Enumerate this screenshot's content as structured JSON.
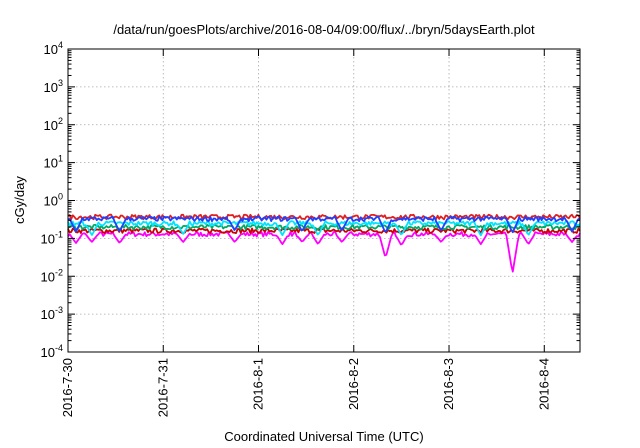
{
  "chart_data": {
    "type": "line",
    "title": "/data/run/goesPlots/archive/2016-08-04/09:00/flux/../bryn/5daysEarth.plot",
    "xlabel": "Coordinated Universal Time (UTC)",
    "ylabel": "cGy/day",
    "yscale": "log",
    "ylim": [
      0.0001,
      10000
    ],
    "xlim": [
      "2016-07-30T00:00",
      "2016-08-04T09:00"
    ],
    "grid": true,
    "y_ticks": [
      {
        "base": "10",
        "exp": "-4",
        "value": 0.0001
      },
      {
        "base": "10",
        "exp": "-3",
        "value": 0.001
      },
      {
        "base": "10",
        "exp": "-2",
        "value": 0.01
      },
      {
        "base": "10",
        "exp": "-1",
        "value": 0.1
      },
      {
        "base": "10",
        "exp": "0",
        "value": 1
      },
      {
        "base": "10",
        "exp": "1",
        "value": 10
      },
      {
        "base": "10",
        "exp": "2",
        "value": 100
      },
      {
        "base": "10",
        "exp": "3",
        "value": 1000
      },
      {
        "base": "10",
        "exp": "4",
        "value": 10000
      }
    ],
    "x_ticks": [
      {
        "label": "2016-7-30",
        "value": "2016-07-30T00:00"
      },
      {
        "label": "2016-7-31",
        "value": "2016-07-31T00:00"
      },
      {
        "label": "2016-8-1",
        "value": "2016-08-01T00:00"
      },
      {
        "label": "2016-8-2",
        "value": "2016-08-02T00:00"
      },
      {
        "label": "2016-8-3",
        "value": "2016-08-03T00:00"
      },
      {
        "label": "2016-8-4",
        "value": "2016-08-04T00:00"
      }
    ],
    "series": [
      {
        "color": "#ff00ff",
        "base": 0.13,
        "dips": [
          {
            "t": "2016-07-30T02:00",
            "v": 0.075
          },
          {
            "t": "2016-07-30T06:00",
            "v": 0.08
          },
          {
            "t": "2016-07-30T13:00",
            "v": 0.075
          },
          {
            "t": "2016-07-31T05:00",
            "v": 0.08
          },
          {
            "t": "2016-07-31T18:00",
            "v": 0.08
          },
          {
            "t": "2016-08-01T06:00",
            "v": 0.07
          },
          {
            "t": "2016-08-01T11:00",
            "v": 0.08
          },
          {
            "t": "2016-08-01T15:00",
            "v": 0.07
          },
          {
            "t": "2016-08-01T21:00",
            "v": 0.08
          },
          {
            "t": "2016-08-02T08:00",
            "v": 0.03
          },
          {
            "t": "2016-08-02T12:00",
            "v": 0.065
          },
          {
            "t": "2016-08-02T22:00",
            "v": 0.08
          },
          {
            "t": "2016-08-03T08:00",
            "v": 0.07
          },
          {
            "t": "2016-08-03T16:00",
            "v": 0.012
          },
          {
            "t": "2016-08-03T20:00",
            "v": 0.07
          },
          {
            "t": "2016-08-04T07:00",
            "v": 0.08
          }
        ]
      },
      {
        "color": "#cc0000",
        "base": 0.16,
        "dips": []
      },
      {
        "color": "#00aa66",
        "base": 0.2,
        "dips": []
      },
      {
        "color": "#00e5ff",
        "base": 0.25,
        "dips": [
          {
            "t": "2016-07-30T06:00",
            "v": 0.12
          },
          {
            "t": "2016-07-31T05:00",
            "v": 0.13
          },
          {
            "t": "2016-08-01T06:00",
            "v": 0.12
          },
          {
            "t": "2016-08-01T15:00",
            "v": 0.12
          },
          {
            "t": "2016-08-02T12:00",
            "v": 0.12
          },
          {
            "t": "2016-08-03T08:00",
            "v": 0.12
          },
          {
            "t": "2016-08-03T20:00",
            "v": 0.12
          }
        ]
      },
      {
        "color": "#e02020",
        "base": 0.37,
        "dips": []
      },
      {
        "color": "#2040ff",
        "base": 0.33,
        "dips": [
          {
            "t": "2016-07-30T02:00",
            "v": 0.15
          },
          {
            "t": "2016-07-30T13:00",
            "v": 0.15
          },
          {
            "t": "2016-07-31T18:00",
            "v": 0.16
          },
          {
            "t": "2016-08-01T11:00",
            "v": 0.15
          },
          {
            "t": "2016-08-01T21:00",
            "v": 0.16
          },
          {
            "t": "2016-08-02T08:00",
            "v": 0.14
          },
          {
            "t": "2016-08-02T22:00",
            "v": 0.16
          },
          {
            "t": "2016-08-03T16:00",
            "v": 0.14
          },
          {
            "t": "2016-08-04T07:00",
            "v": 0.15
          }
        ]
      }
    ]
  }
}
